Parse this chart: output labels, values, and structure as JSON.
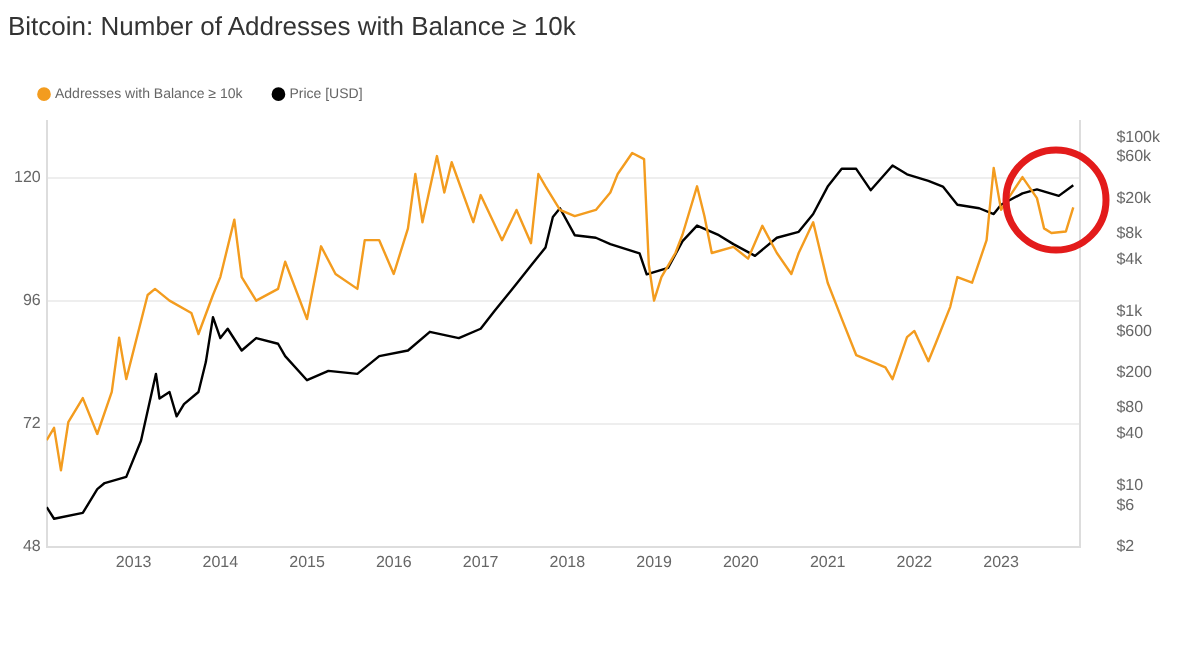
{
  "chart_data": {
    "type": "line",
    "title": "Bitcoin: Number of Addresses with Balance ≥ 10k",
    "xlim": [
      "2012-01",
      "2023-12"
    ],
    "xticks": [
      "2013",
      "2014",
      "2015",
      "2016",
      "2017",
      "2018",
      "2019",
      "2020",
      "2021",
      "2022",
      "2023"
    ],
    "ylim": [
      48,
      131
    ],
    "yticks": [
      48,
      72,
      96,
      120
    ],
    "y2lim": [
      2,
      155000
    ],
    "y2ticks": [
      {
        "value": 2,
        "label": "$2"
      },
      {
        "value": 6,
        "label": "$6"
      },
      {
        "value": 10,
        "label": "$10"
      },
      {
        "value": 40,
        "label": "$40"
      },
      {
        "value": 80,
        "label": "$80"
      },
      {
        "value": 200,
        "label": "$200"
      },
      {
        "value": 600,
        "label": "$600"
      },
      {
        "value": 1000,
        "label": "$1k"
      },
      {
        "value": 4000,
        "label": "$4k"
      },
      {
        "value": 8000,
        "label": "$8k"
      },
      {
        "value": 20000,
        "label": "$20k"
      },
      {
        "value": 60000,
        "label": "$60k"
      },
      {
        "value": 100000,
        "label": "$100k"
      }
    ],
    "log": "y2",
    "grid": "y",
    "legend": "top left",
    "marker": "none",
    "line_style": "solid",
    "series": [
      {
        "name": "Addresses with Balance ≥ 10k",
        "color": "#f39c1f",
        "x": [
          "2012-01",
          "2012-02",
          "2012-03",
          "2012-04",
          "2012-06",
          "2012-08",
          "2012-10",
          "2012-11",
          "2012-12",
          "2013-03",
          "2013-04",
          "2013-06",
          "2013-09",
          "2013-10",
          "2013-12",
          "2014-01",
          "2014-03",
          "2014-04",
          "2014-06",
          "2014-09",
          "2014-10",
          "2015-01",
          "2015-03",
          "2015-05",
          "2015-08",
          "2015-09",
          "2015-11",
          "2016-01",
          "2016-03",
          "2016-04",
          "2016-05",
          "2016-07",
          "2016-08",
          "2016-09",
          "2016-12",
          "2017-01",
          "2017-04",
          "2017-06",
          "2017-08",
          "2017-09",
          "2017-10",
          "2017-12",
          "2018-02",
          "2018-05",
          "2018-07",
          "2018-08",
          "2018-10",
          "2018-11-20",
          "2018-12-10",
          "2019-01",
          "2019-02",
          "2019-04",
          "2019-05",
          "2019-07",
          "2019-08",
          "2019-09",
          "2019-12",
          "2020-02",
          "2020-04",
          "2020-06",
          "2020-08",
          "2020-09",
          "2020-11",
          "2021-01",
          "2021-03",
          "2021-05",
          "2021-07",
          "2021-09",
          "2021-10",
          "2021-12",
          "2022-01",
          "2022-03",
          "2022-04",
          "2022-06",
          "2022-07",
          "2022-09",
          "2022-11",
          "2022-12",
          "2023-01",
          "2023-02",
          "2023-04",
          "2023-06",
          "2023-07",
          "2023-08",
          "2023-10",
          "2023-11"
        ],
        "values": [
          68.8,
          71.2,
          62.9,
          72.3,
          77.0,
          70,
          78.2,
          88.8,
          80.7,
          97.1,
          98.3,
          96,
          93.6,
          89.5,
          97.1,
          100.6,
          111.8,
          100.6,
          96,
          98.3,
          103.6,
          92.4,
          106.6,
          101.2,
          98.3,
          107.8,
          107.8,
          101.2,
          110.1,
          120.7,
          111.3,
          124.2,
          117.1,
          123,
          111.3,
          116.6,
          107.8,
          113.7,
          107.2,
          120.7,
          118.3,
          113.7,
          112.5,
          113.7,
          117.1,
          120.7,
          124.8,
          123.6,
          103,
          96,
          100.6,
          105.3,
          108.9,
          118.3,
          112.5,
          105.3,
          106.5,
          104.2,
          110.6,
          105.3,
          101.2,
          105.3,
          111.3,
          99.5,
          92.5,
          85.4,
          84.2,
          83,
          80.7,
          88.9,
          90.1,
          84.2,
          87.7,
          94.8,
          100.6,
          99.5,
          107.8,
          121.9,
          113.7,
          116,
          120.1,
          116,
          110.1,
          109.2,
          109.5,
          114.2
        ]
      },
      {
        "name": "Price [USD]",
        "color": "#000000",
        "axis": "y2",
        "x": [
          "2012-01",
          "2012-02",
          "2012-06",
          "2012-08",
          "2012-09",
          "2012-12",
          "2013-02",
          "2013-04-05",
          "2013-04-20",
          "2013-06",
          "2013-07",
          "2013-08",
          "2013-10",
          "2013-11",
          "2013-12",
          "2014-01",
          "2014-02",
          "2014-04",
          "2014-06",
          "2014-09",
          "2014-10",
          "2015-01",
          "2015-04",
          "2015-08",
          "2015-11",
          "2016-03",
          "2016-06",
          "2016-10",
          "2017-01",
          "2017-03",
          "2017-06",
          "2017-08",
          "2017-10",
          "2017-11",
          "2017-12",
          "2018-02",
          "2018-05",
          "2018-07",
          "2018-11",
          "2018-12",
          "2019-03",
          "2019-05",
          "2019-07",
          "2019-10",
          "2019-12",
          "2020-03",
          "2020-06",
          "2020-09",
          "2020-11",
          "2021-01",
          "2021-03",
          "2021-05",
          "2021-07",
          "2021-10",
          "2021-12",
          "2022-03",
          "2022-05",
          "2022-07",
          "2022-10",
          "2022-12",
          "2023-01",
          "2023-04",
          "2023-06",
          "2023-09",
          "2023-11"
        ],
        "values": [
          5.7,
          4.2,
          4.9,
          9.2,
          10.8,
          12.7,
          33,
          194,
          101,
          120,
          63,
          87,
          120,
          265,
          870,
          500,
          640,
          360,
          500,
          430,
          310,
          164,
          210,
          194,
          310,
          360,
          590,
          500,
          640,
          1030,
          2100,
          3400,
          5500,
          12300,
          15500,
          7600,
          7100,
          6000,
          4700,
          2700,
          3200,
          6500,
          9800,
          7600,
          6000,
          4400,
          7100,
          8300,
          13300,
          27500,
          44000,
          44000,
          25000,
          48000,
          38000,
          32000,
          27500,
          17000,
          15500,
          13300,
          17000,
          23000,
          25500,
          21500,
          28500
        ]
      }
    ]
  }
}
